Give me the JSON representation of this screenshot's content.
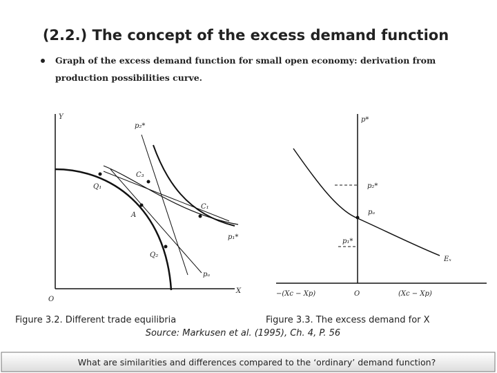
{
  "title": "(2.2.) The concept of the excess demand function",
  "bullet": {
    "line1": "Graph of the excess demand function for small open economy: derivation from",
    "line2": "production possibilities curve."
  },
  "figure_left": {
    "labels": [
      "Y",
      "X",
      "O",
      "p₂*",
      "C₃",
      "Q₁",
      "C₁",
      "A",
      "p₁*",
      "Q₂",
      "pₐ"
    ]
  },
  "figure_right": {
    "labels": [
      "p*",
      "p₂*",
      "pₐ",
      "p₁*",
      "Eₓ",
      "−(Xc − Xp)",
      "O",
      "(Xc − Xp)"
    ]
  },
  "captions": {
    "left": "Figure 3.2. Different trade equilibria",
    "right": "Figure 3.3. The excess demand for X",
    "source": "Source: Markusen et al. (1995), Ch. 4, P. 56"
  },
  "footer": "What are similarities and differences compared to the ‘ordinary’ demand function?"
}
